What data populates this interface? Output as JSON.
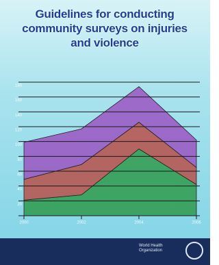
{
  "chart_data": {
    "type": "area",
    "title": "Guidelines for conducting community surveys on injuries and violence",
    "x": [
      2000,
      2002,
      2004,
      2006
    ],
    "xlim": [
      2000,
      2006
    ],
    "xticks": [
      2000,
      2002,
      2004,
      2006
    ],
    "ylim": [
      0,
      180
    ],
    "yticks": [
      20,
      40,
      60,
      80,
      100,
      120,
      140,
      160,
      180
    ],
    "grid": true,
    "stacked": true,
    "series": [
      {
        "color": "#2f9a4c",
        "values": [
          21,
          28,
          90,
          42
        ]
      },
      {
        "color": "#b8504a",
        "values": [
          28,
          41,
          36,
          23
        ]
      },
      {
        "color": "#9b55c2",
        "values": [
          50,
          48,
          48,
          37
        ]
      }
    ]
  },
  "publisher": "World Health Organization"
}
